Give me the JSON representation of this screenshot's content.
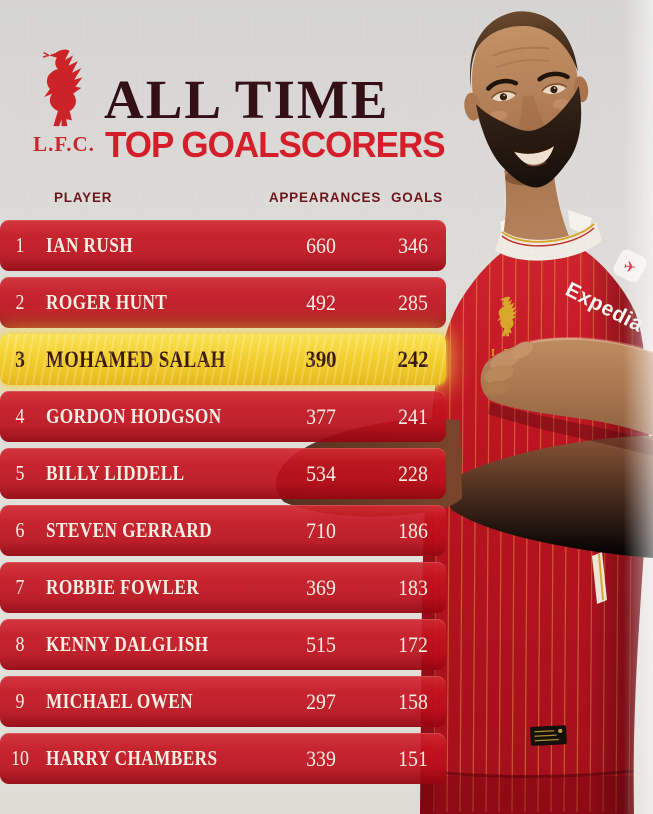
{
  "header": {
    "club_abbr": "L.F.C.",
    "title_line1": "ALL TIME",
    "title_line2": "TOP GOALSCORERS"
  },
  "table": {
    "columns": {
      "player": "PLAYER",
      "appearances": "APPEARANCES",
      "goals": "GOALS"
    },
    "rows": [
      {
        "rank": "1",
        "player": "IAN RUSH",
        "appearances": "660",
        "goals": "346",
        "highlight": false
      },
      {
        "rank": "2",
        "player": "ROGER HUNT",
        "appearances": "492",
        "goals": "285",
        "highlight": false
      },
      {
        "rank": "3",
        "player": "MOHAMED SALAH",
        "appearances": "390",
        "goals": "242",
        "highlight": true
      },
      {
        "rank": "4",
        "player": "GORDON HODGSON",
        "appearances": "377",
        "goals": "241",
        "highlight": false
      },
      {
        "rank": "5",
        "player": "BILLY LIDDELL",
        "appearances": "534",
        "goals": "228",
        "highlight": false
      },
      {
        "rank": "6",
        "player": "STEVEN GERRARD",
        "appearances": "710",
        "goals": "186",
        "highlight": false
      },
      {
        "rank": "7",
        "player": "ROBBIE FOWLER",
        "appearances": "369",
        "goals": "183",
        "highlight": false
      },
      {
        "rank": "8",
        "player": "KENNY DALGLISH",
        "appearances": "515",
        "goals": "172",
        "highlight": false
      },
      {
        "rank": "9",
        "player": "MICHAEL OWEN",
        "appearances": "297",
        "goals": "158",
        "highlight": false
      },
      {
        "rank": "10",
        "player": "HARRY CHAMBERS",
        "appearances": "339",
        "goals": "151",
        "highlight": false
      }
    ]
  },
  "photo": {
    "sponsor_label": "Expedia",
    "crest_label": "L.F.C."
  },
  "colors": {
    "bar_red": "#c41724",
    "highlight_yellow": "#f3cf2e",
    "title_dark": "#330f16",
    "title_red": "#d41e2a",
    "header_label": "#6d161c",
    "crest_gold": "#d9a62e"
  }
}
